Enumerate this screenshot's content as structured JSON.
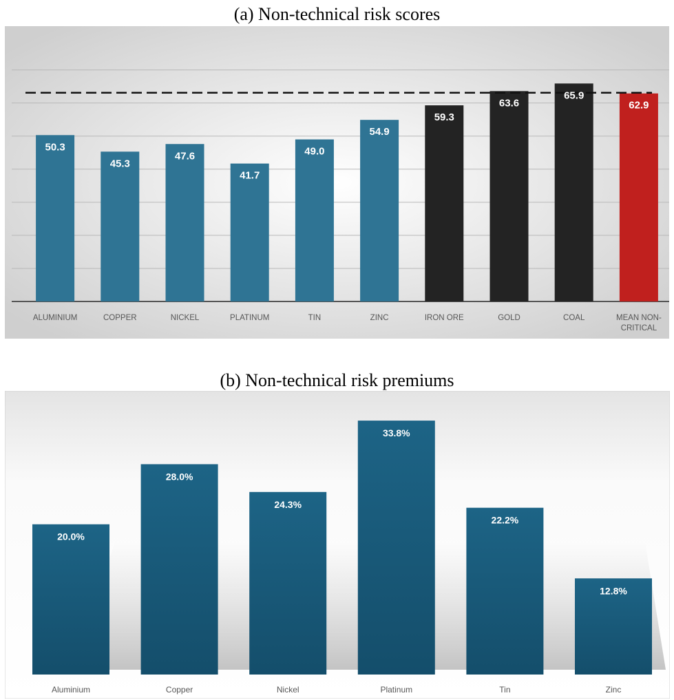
{
  "captions": {
    "a": "(a)    Non-technical risk scores",
    "b": "(b)    Non-technical risk premiums"
  },
  "chart_data": [
    {
      "type": "bar",
      "categories": [
        "ALUMINIUM",
        "COPPER",
        "NICKEL",
        "PLATINUM",
        "TIN",
        "ZINC",
        "IRON ORE",
        "GOLD",
        "COAL",
        "MEAN NON-CRITICAL"
      ],
      "category_lines": [
        [
          "ALUMINIUM"
        ],
        [
          "COPPER"
        ],
        [
          "NICKEL"
        ],
        [
          "PLATINUM"
        ],
        [
          "TIN"
        ],
        [
          "ZINC"
        ],
        [
          "IRON ORE"
        ],
        [
          "GOLD"
        ],
        [
          "COAL"
        ],
        [
          "MEAN NON-",
          "CRITICAL"
        ]
      ],
      "values": [
        50.3,
        45.3,
        47.6,
        41.7,
        49.0,
        54.9,
        59.3,
        63.6,
        65.9,
        62.9
      ],
      "data_labels": [
        "50.3",
        "45.3",
        "47.6",
        "41.7",
        "49.0",
        "54.9",
        "59.3",
        "63.6",
        "65.9",
        "62.9"
      ],
      "bar_colors": [
        "#2f7494",
        "#2f7494",
        "#2f7494",
        "#2f7494",
        "#2f7494",
        "#2f7494",
        "#232323",
        "#232323",
        "#232323",
        "#c0201e"
      ],
      "reference_line": 62.9,
      "ylim": [
        0,
        72
      ],
      "grid_step": 10,
      "grid": true
    },
    {
      "type": "bar",
      "categories": [
        "Aluminium",
        "Copper",
        "Nickel",
        "Platinum",
        "Tin",
        "Zinc"
      ],
      "values": [
        20.0,
        28.0,
        24.3,
        33.8,
        22.2,
        12.8
      ],
      "data_labels": [
        "20.0%",
        "28.0%",
        "24.3%",
        "33.8%",
        "22.2%",
        "12.8%"
      ],
      "bar_color": "#1a5c7e",
      "ylim": [
        0,
        35.0
      ],
      "grid": false
    }
  ]
}
